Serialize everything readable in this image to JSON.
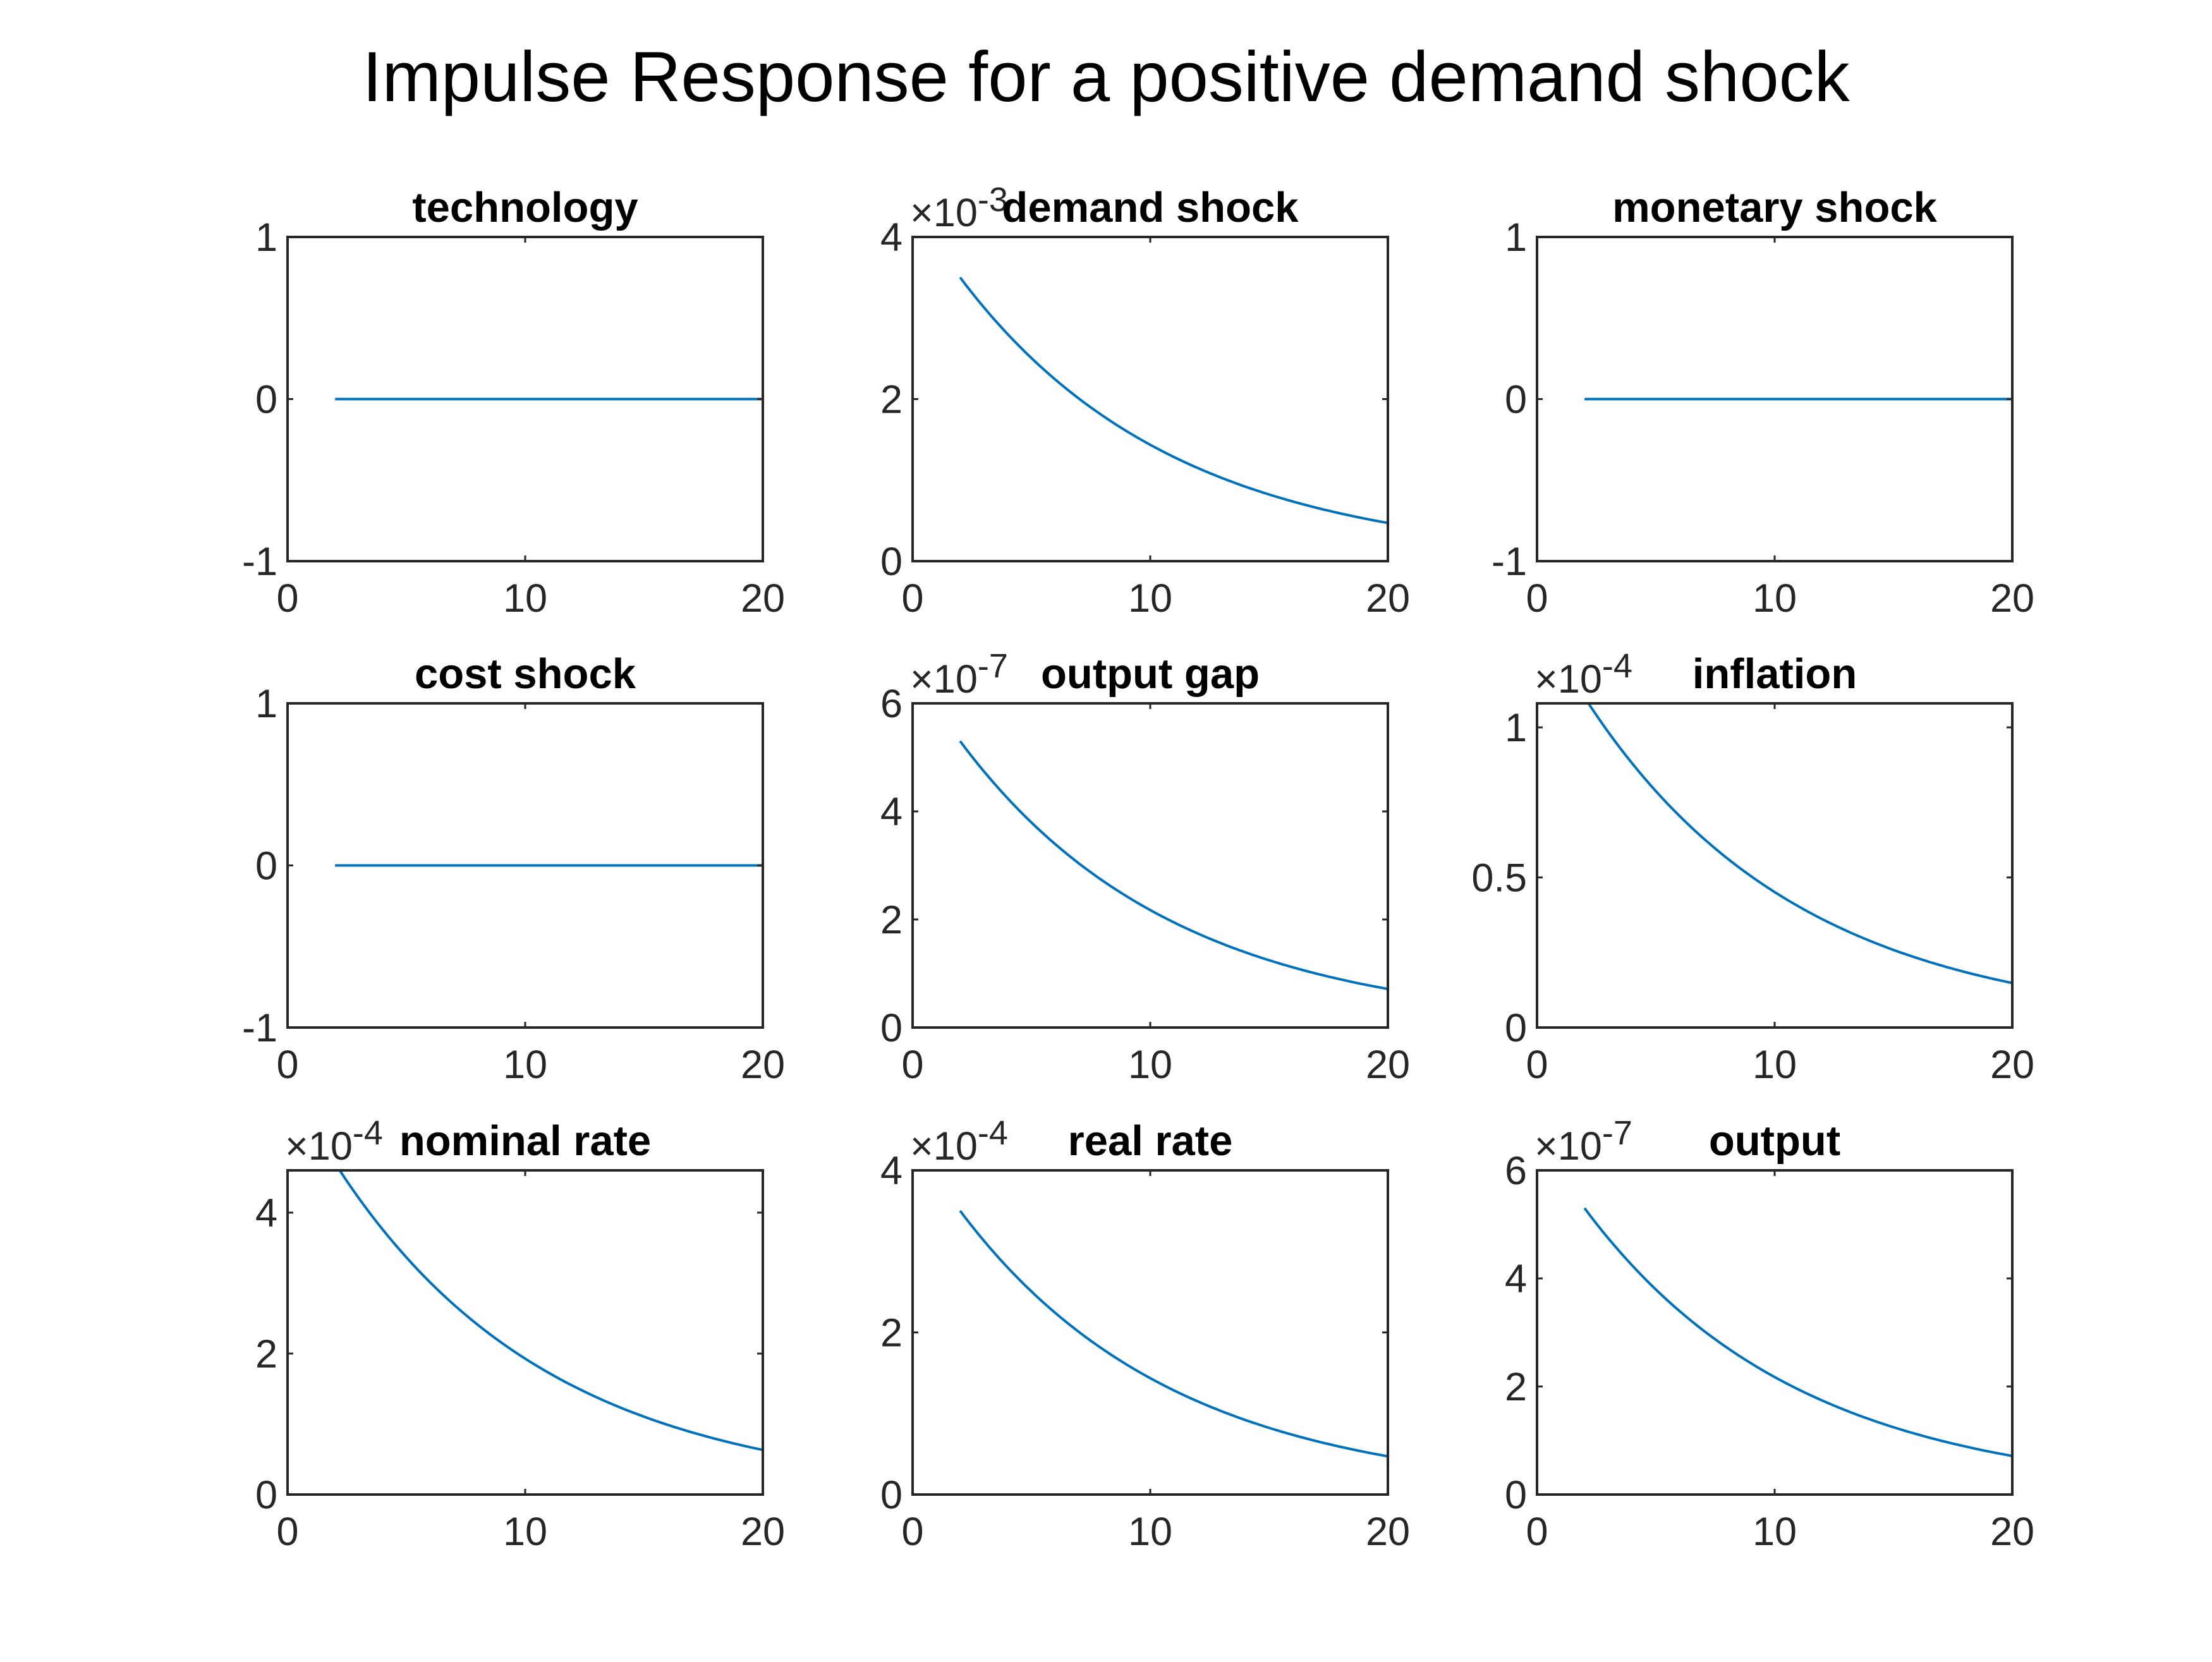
{
  "figure": {
    "title": "Impulse Response for a positive demand shock"
  },
  "colors": {
    "line": "#0072BD",
    "axis": "#262626",
    "title": "#000000"
  },
  "chart_data": [
    {
      "type": "line",
      "title": "technology",
      "exponent_label": "",
      "xlim": [
        0,
        20
      ],
      "ylim": [
        -1,
        1
      ],
      "xticks": [
        0,
        10,
        20
      ],
      "xtick_labels": [
        "0",
        "10",
        "20"
      ],
      "yticks": [
        -1,
        0,
        1
      ],
      "ytick_labels": [
        "-1",
        "0",
        "1"
      ],
      "series": [
        {
          "x_start": 2,
          "x_end": 20,
          "initial": 0,
          "decay": 1
        }
      ]
    },
    {
      "type": "line",
      "title": "demand shock",
      "exponent_label": "×10-3",
      "xlim": [
        0,
        20
      ],
      "ylim": [
        0,
        4
      ],
      "xticks": [
        0,
        10,
        20
      ],
      "xtick_labels": [
        "0",
        "10",
        "20"
      ],
      "yticks": [
        0,
        2,
        4
      ],
      "ytick_labels": [
        "0",
        "2",
        "4"
      ],
      "series": [
        {
          "x_start": 2,
          "x_end": 20,
          "initial": 3.5,
          "decay": 0.8946
        }
      ]
    },
    {
      "type": "line",
      "title": "monetary shock",
      "exponent_label": "",
      "xlim": [
        0,
        20
      ],
      "ylim": [
        -1,
        1
      ],
      "xticks": [
        0,
        10,
        20
      ],
      "xtick_labels": [
        "0",
        "10",
        "20"
      ],
      "yticks": [
        -1,
        0,
        1
      ],
      "ytick_labels": [
        "-1",
        "0",
        "1"
      ],
      "series": [
        {
          "x_start": 2,
          "x_end": 20,
          "initial": 0,
          "decay": 1
        }
      ]
    },
    {
      "type": "line",
      "title": "cost shock",
      "exponent_label": "",
      "xlim": [
        0,
        20
      ],
      "ylim": [
        -1,
        1
      ],
      "xticks": [
        0,
        10,
        20
      ],
      "xtick_labels": [
        "0",
        "10",
        "20"
      ],
      "yticks": [
        -1,
        0,
        1
      ],
      "ytick_labels": [
        "-1",
        "0",
        "1"
      ],
      "series": [
        {
          "x_start": 2,
          "x_end": 20,
          "initial": 0,
          "decay": 1
        }
      ]
    },
    {
      "type": "line",
      "title": "output gap",
      "exponent_label": "×10-7",
      "xlim": [
        0,
        20
      ],
      "ylim": [
        0,
        6
      ],
      "xticks": [
        0,
        10,
        20
      ],
      "xtick_labels": [
        "0",
        "10",
        "20"
      ],
      "yticks": [
        0,
        2,
        4,
        6
      ],
      "ytick_labels": [
        "0",
        "2",
        "4",
        "6"
      ],
      "series": [
        {
          "x_start": 2,
          "x_end": 20,
          "initial": 5.3,
          "decay": 0.8946
        }
      ]
    },
    {
      "type": "line",
      "title": "inflation",
      "exponent_label": "×10-4",
      "xlim": [
        0,
        20
      ],
      "ylim": [
        0,
        1.08
      ],
      "xticks": [
        0,
        10,
        20
      ],
      "xtick_labels": [
        "0",
        "10",
        "20"
      ],
      "yticks": [
        0,
        0.5,
        1
      ],
      "ytick_labels": [
        "0",
        "0.5",
        "1"
      ],
      "series": [
        {
          "x_start": 2,
          "x_end": 20,
          "initial": 1.1,
          "decay": 0.8946
        }
      ]
    },
    {
      "type": "line",
      "title": "nominal rate",
      "exponent_label": "×10-4",
      "xlim": [
        0,
        20
      ],
      "ylim": [
        0,
        4.6
      ],
      "xticks": [
        0,
        10,
        20
      ],
      "xtick_labels": [
        "0",
        "10",
        "20"
      ],
      "yticks": [
        0,
        2,
        4
      ],
      "ytick_labels": [
        "0",
        "2",
        "4"
      ],
      "series": [
        {
          "x_start": 2,
          "x_end": 20,
          "initial": 4.7,
          "decay": 0.8946
        }
      ]
    },
    {
      "type": "line",
      "title": "real rate",
      "exponent_label": "×10-4",
      "xlim": [
        0,
        20
      ],
      "ylim": [
        0,
        4
      ],
      "xticks": [
        0,
        10,
        20
      ],
      "xtick_labels": [
        "0",
        "10",
        "20"
      ],
      "yticks": [
        0,
        2,
        4
      ],
      "ytick_labels": [
        "0",
        "2",
        "4"
      ],
      "series": [
        {
          "x_start": 2,
          "x_end": 20,
          "initial": 3.5,
          "decay": 0.8946
        }
      ]
    },
    {
      "type": "line",
      "title": "output",
      "exponent_label": "×10-7",
      "xlim": [
        0,
        20
      ],
      "ylim": [
        0,
        6
      ],
      "xticks": [
        0,
        10,
        20
      ],
      "xtick_labels": [
        "0",
        "10",
        "20"
      ],
      "yticks": [
        0,
        2,
        4,
        6
      ],
      "ytick_labels": [
        "0",
        "2",
        "4",
        "6"
      ],
      "series": [
        {
          "x_start": 2,
          "x_end": 20,
          "initial": 5.3,
          "decay": 0.8946
        }
      ]
    }
  ]
}
